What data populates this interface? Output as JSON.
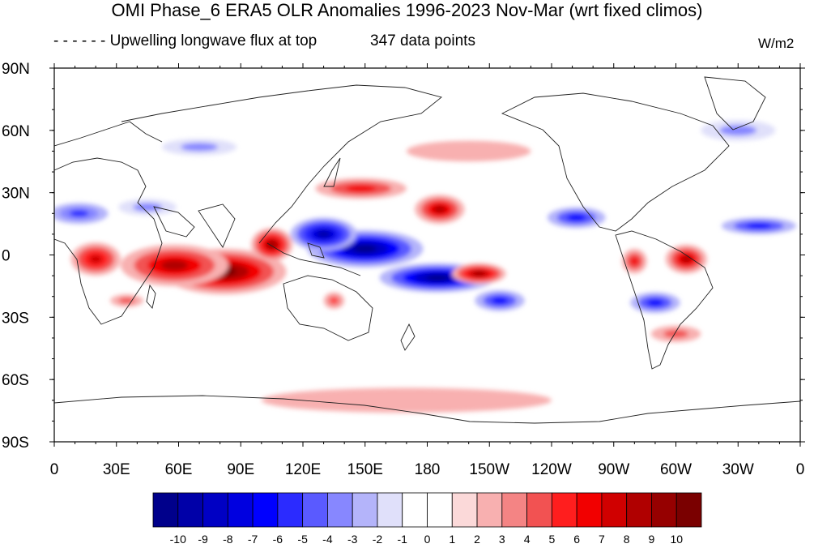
{
  "title": "OMI Phase_6 ERA5 OLR Anomalies 1996-2023 Nov-Mar (wrt fixed climos)",
  "subtitle_left": "Upwelling longwave flux at top",
  "subtitle_mid": "347 data points",
  "units": "W/m2",
  "legend_dash": "- - - - - -",
  "lat_ticks": [
    {
      "value": 90,
      "label": "90N"
    },
    {
      "value": 60,
      "label": "60N"
    },
    {
      "value": 30,
      "label": "30N"
    },
    {
      "value": 0,
      "label": "0"
    },
    {
      "value": -30,
      "label": "30S"
    },
    {
      "value": -60,
      "label": "60S"
    },
    {
      "value": -90,
      "label": "90S"
    }
  ],
  "lon_ticks": [
    {
      "value": 0,
      "label": "0"
    },
    {
      "value": 30,
      "label": "30E"
    },
    {
      "value": 60,
      "label": "60E"
    },
    {
      "value": 90,
      "label": "90E"
    },
    {
      "value": 120,
      "label": "120E"
    },
    {
      "value": 150,
      "label": "150E"
    },
    {
      "value": 180,
      "label": "180"
    },
    {
      "value": 210,
      "label": "150W"
    },
    {
      "value": 240,
      "label": "120W"
    },
    {
      "value": 270,
      "label": "90W"
    },
    {
      "value": 300,
      "label": "60W"
    },
    {
      "value": 330,
      "label": "30W"
    },
    {
      "value": 360,
      "label": "0"
    }
  ],
  "colorbar": {
    "colors": [
      "#00008b",
      "#0000a8",
      "#0000c4",
      "#0000e0",
      "#0000ff",
      "#2b2bff",
      "#5a5aff",
      "#8787ff",
      "#b4b4fa",
      "#e0e0fa",
      "#ffffff",
      "#ffffff",
      "#fbd9d9",
      "#f8b0b0",
      "#f48484",
      "#f25252",
      "#ff1e1e",
      "#f20000",
      "#d00000",
      "#b00000",
      "#960000",
      "#7a0000"
    ],
    "labels": [
      "-10",
      "-9",
      "-8",
      "-7",
      "-6",
      "-5",
      "-4",
      "-3",
      "-2",
      "-1",
      "0",
      "1",
      "2",
      "3",
      "4",
      "5",
      "6",
      "7",
      "8",
      "9",
      "10"
    ]
  },
  "anomaly_features": [
    {
      "lon": 82,
      "lat": -8,
      "rx": 30,
      "ry": 11,
      "value": 10
    },
    {
      "lon": 58,
      "lat": -5,
      "rx": 26,
      "ry": 10,
      "value": 8
    },
    {
      "lon": 20,
      "lat": -2,
      "rx": 12,
      "ry": 8,
      "value": 7
    },
    {
      "lon": 105,
      "lat": 5,
      "rx": 10,
      "ry": 8,
      "value": 9
    },
    {
      "lon": 150,
      "lat": 3,
      "rx": 28,
      "ry": 9,
      "value": -10
    },
    {
      "lon": 185,
      "lat": -11,
      "rx": 28,
      "ry": 7,
      "value": -10
    },
    {
      "lon": 130,
      "lat": 10,
      "rx": 16,
      "ry": 8,
      "value": -9
    },
    {
      "lon": 215,
      "lat": -22,
      "rx": 12,
      "ry": 5,
      "value": -6
    },
    {
      "lon": 205,
      "lat": -9,
      "rx": 13,
      "ry": 5,
      "value": 9
    },
    {
      "lon": 186,
      "lat": 22,
      "rx": 12,
      "ry": 7,
      "value": 8
    },
    {
      "lon": 148,
      "lat": 32,
      "rx": 22,
      "ry": 5,
      "value": 6
    },
    {
      "lon": 252,
      "lat": 18,
      "rx": 14,
      "ry": 5,
      "value": -6
    },
    {
      "lon": 290,
      "lat": -23,
      "rx": 12,
      "ry": 5,
      "value": -6
    },
    {
      "lon": 340,
      "lat": 14,
      "rx": 18,
      "ry": 4,
      "value": -6
    },
    {
      "lon": 305,
      "lat": -2,
      "rx": 10,
      "ry": 7,
      "value": 8
    },
    {
      "lon": 280,
      "lat": -3,
      "rx": 6,
      "ry": 6,
      "value": 6
    },
    {
      "lon": 12,
      "lat": 20,
      "rx": 14,
      "ry": 5,
      "value": -5
    },
    {
      "lon": 45,
      "lat": 23,
      "rx": 14,
      "ry": 4,
      "value": -3
    },
    {
      "lon": 135,
      "lat": -22,
      "rx": 5,
      "ry": 4,
      "value": 5
    },
    {
      "lon": 35,
      "lat": -22,
      "rx": 8,
      "ry": 3,
      "value": 4
    },
    {
      "lon": 70,
      "lat": 52,
      "rx": 18,
      "ry": 4,
      "value": -3
    },
    {
      "lon": 300,
      "lat": -38,
      "rx": 12,
      "ry": 4,
      "value": 4
    },
    {
      "lon": 330,
      "lat": 60,
      "rx": 18,
      "ry": 5,
      "value": -3
    },
    {
      "lon": 200,
      "lat": 50,
      "rx": 30,
      "ry": 5,
      "value": 2
    },
    {
      "lon": 170,
      "lat": -70,
      "rx": 70,
      "ry": 6,
      "value": 2
    }
  ]
}
